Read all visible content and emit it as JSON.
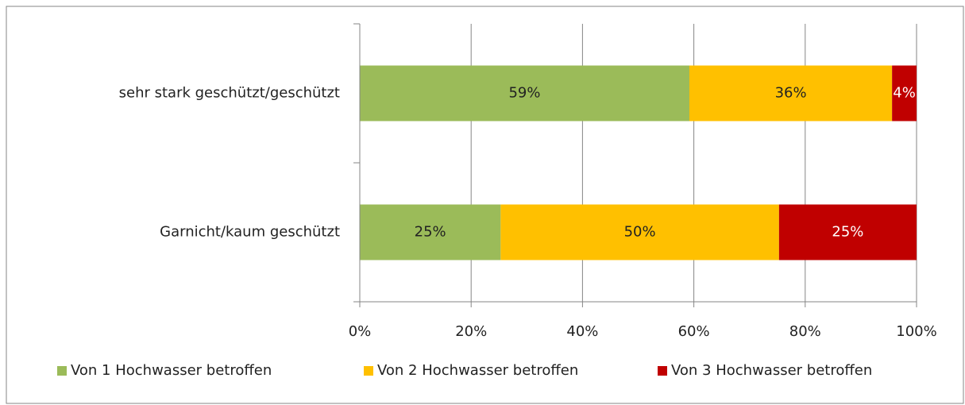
{
  "chart_data": {
    "type": "stacked_bar_horizontal",
    "categories": [
      "sehr stark geschützt/geschützt",
      "Garnicht/kaum geschützt"
    ],
    "series": [
      {
        "name": "Von 1 Hochwasser betroffen",
        "color": "#9bbb59",
        "label_color": "#222222",
        "values": [
          59.2,
          25.3
        ],
        "value_labels": [
          "59%",
          "25%"
        ]
      },
      {
        "name": "Von 2 Hochwasser betroffen",
        "color": "#ffc000",
        "label_color": "#222222",
        "values": [
          36.4,
          50.0
        ],
        "value_labels": [
          "36%",
          "50%"
        ]
      },
      {
        "name": "Von 3 Hochwasser betroffen",
        "color": "#c00000",
        "label_color": "#ffffff",
        "values": [
          4.4,
          24.7
        ],
        "value_labels": [
          "4%",
          "25%"
        ]
      }
    ],
    "xlim": [
      0,
      100
    ],
    "xticks": [
      {
        "value": 0,
        "label": "0%"
      },
      {
        "value": 20,
        "label": "20%"
      },
      {
        "value": 40,
        "label": "40%"
      },
      {
        "value": 60,
        "label": "60%"
      },
      {
        "value": 80,
        "label": "80%"
      },
      {
        "value": 100,
        "label": "100%"
      }
    ],
    "grid": true,
    "legend": "bottom"
  }
}
